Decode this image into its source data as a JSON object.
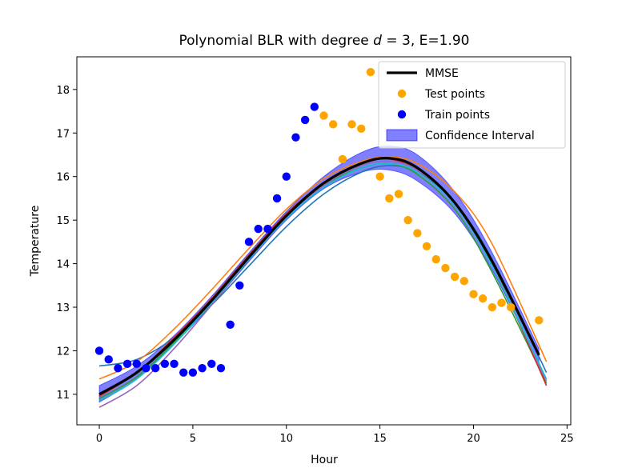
{
  "chart_data": {
    "type": "line",
    "title": "Polynomial BLR with degree d = 3, E=1.90",
    "title_parts": {
      "prefix": "Polynomial BLR with degree ",
      "var": "d",
      "suffix": " = 3, E=1.90"
    },
    "xlabel": "Hour",
    "ylabel": "Temperature",
    "xlim": [
      -1.2,
      25.2
    ],
    "ylim": [
      10.3,
      18.75
    ],
    "xticks": [
      0,
      5,
      10,
      15,
      20,
      25
    ],
    "yticks": [
      11,
      12,
      13,
      14,
      15,
      16,
      17,
      18
    ],
    "grid": false,
    "legend_position": "top-right",
    "legend": [
      {
        "label": "MMSE",
        "kind": "line",
        "color": "#000000"
      },
      {
        "label": "Test points",
        "kind": "marker",
        "color": "#ffa500"
      },
      {
        "label": "Train points",
        "kind": "marker",
        "color": "#0000ff"
      },
      {
        "label": "Confidence Interval",
        "kind": "patch",
        "color": "#0000ff"
      }
    ],
    "mmse": {
      "color": "#000000",
      "points": [
        [
          0,
          11.0
        ],
        [
          2,
          11.5
        ],
        [
          4,
          12.25
        ],
        [
          6,
          13.15
        ],
        [
          8,
          14.15
        ],
        [
          10,
          15.1
        ],
        [
          12,
          15.85
        ],
        [
          14,
          16.3
        ],
        [
          15.5,
          16.42
        ],
        [
          17,
          16.2
        ],
        [
          19,
          15.4
        ],
        [
          21,
          14.05
        ],
        [
          23.5,
          11.9
        ]
      ]
    },
    "confidence_interval": {
      "color": "#0000ff",
      "upper": [
        [
          0,
          11.2
        ],
        [
          2,
          11.65
        ],
        [
          4,
          12.35
        ],
        [
          6,
          13.25
        ],
        [
          8,
          14.25
        ],
        [
          10,
          15.2
        ],
        [
          12,
          16.0
        ],
        [
          14,
          16.55
        ],
        [
          15.5,
          16.7
        ],
        [
          17,
          16.5
        ],
        [
          19,
          15.65
        ],
        [
          21,
          14.25
        ],
        [
          23.5,
          12.05
        ]
      ],
      "lower": [
        [
          0,
          10.82
        ],
        [
          2,
          11.35
        ],
        [
          4,
          12.15
        ],
        [
          6,
          13.05
        ],
        [
          8,
          14.05
        ],
        [
          10,
          15.0
        ],
        [
          12,
          15.72
        ],
        [
          14,
          16.1
        ],
        [
          15.5,
          16.15
        ],
        [
          17,
          15.9
        ],
        [
          19,
          15.15
        ],
        [
          21,
          13.85
        ],
        [
          23.5,
          11.7
        ]
      ]
    },
    "sample_curves": [
      {
        "color": "#1f77b4",
        "points": [
          [
            0,
            11.65
          ],
          [
            2,
            11.8
          ],
          [
            4,
            12.3
          ],
          [
            6,
            13.05
          ],
          [
            8,
            13.95
          ],
          [
            10,
            14.85
          ],
          [
            12,
            15.6
          ],
          [
            14,
            16.1
          ],
          [
            15.5,
            16.25
          ],
          [
            17,
            16.1
          ],
          [
            19,
            15.4
          ],
          [
            21,
            14.1
          ],
          [
            23.9,
            11.5
          ]
        ]
      },
      {
        "color": "#ff7f0e",
        "points": [
          [
            0,
            11.35
          ],
          [
            2,
            11.75
          ],
          [
            4,
            12.5
          ],
          [
            6,
            13.4
          ],
          [
            8,
            14.35
          ],
          [
            10,
            15.25
          ],
          [
            12,
            15.95
          ],
          [
            14,
            16.35
          ],
          [
            15.5,
            16.45
          ],
          [
            17,
            16.3
          ],
          [
            19,
            15.65
          ],
          [
            21,
            14.45
          ],
          [
            23.9,
            11.75
          ]
        ]
      },
      {
        "color": "#2ca02c",
        "points": [
          [
            0,
            10.9
          ],
          [
            2,
            11.4
          ],
          [
            4,
            12.2
          ],
          [
            6,
            13.15
          ],
          [
            8,
            14.15
          ],
          [
            10,
            15.1
          ],
          [
            12,
            15.8
          ],
          [
            14,
            16.2
          ],
          [
            15.5,
            16.3
          ],
          [
            17,
            16.05
          ],
          [
            19,
            15.25
          ],
          [
            21,
            13.8
          ],
          [
            23.9,
            11.25
          ]
        ]
      },
      {
        "color": "#d62728",
        "points": [
          [
            0,
            10.95
          ],
          [
            2,
            11.5
          ],
          [
            4,
            12.3
          ],
          [
            6,
            13.2
          ],
          [
            8,
            14.2
          ],
          [
            10,
            15.15
          ],
          [
            12,
            15.85
          ],
          [
            14,
            16.3
          ],
          [
            15.5,
            16.4
          ],
          [
            17,
            16.15
          ],
          [
            19,
            15.4
          ],
          [
            21,
            14.0
          ],
          [
            23.9,
            11.2
          ]
        ]
      },
      {
        "color": "#9467bd",
        "points": [
          [
            0,
            10.7
          ],
          [
            2,
            11.2
          ],
          [
            4,
            12.05
          ],
          [
            6,
            13.05
          ],
          [
            8,
            14.1
          ],
          [
            10,
            15.05
          ],
          [
            12,
            15.8
          ],
          [
            14,
            16.25
          ],
          [
            15.5,
            16.35
          ],
          [
            17,
            16.15
          ],
          [
            19,
            15.4
          ],
          [
            21,
            13.95
          ],
          [
            23.9,
            11.3
          ]
        ]
      },
      {
        "color": "#17becf",
        "points": [
          [
            0,
            10.85
          ],
          [
            2,
            11.35
          ],
          [
            4,
            12.15
          ],
          [
            6,
            13.1
          ],
          [
            8,
            14.1
          ],
          [
            10,
            15.05
          ],
          [
            12,
            15.75
          ],
          [
            14,
            16.2
          ],
          [
            15.5,
            16.3
          ],
          [
            17,
            16.1
          ],
          [
            19,
            15.35
          ],
          [
            21,
            13.95
          ],
          [
            23.9,
            11.35
          ]
        ]
      }
    ],
    "train_points": {
      "color": "#0000ff",
      "x": [
        0,
        0.5,
        1,
        1.5,
        2,
        2.5,
        3,
        3.5,
        4,
        4.5,
        5,
        5.5,
        6,
        6.5,
        7,
        7.5,
        8,
        8.5,
        9,
        9.5,
        10,
        10.5,
        11,
        11.5
      ],
      "y": [
        12.0,
        11.8,
        11.6,
        11.7,
        11.7,
        11.6,
        11.6,
        11.7,
        11.7,
        11.5,
        11.5,
        11.6,
        11.7,
        11.6,
        12.6,
        13.5,
        14.5,
        14.8,
        14.8,
        15.5,
        16.0,
        16.9,
        17.3,
        17.6
      ]
    },
    "test_points": {
      "color": "#ffa500",
      "x": [
        12,
        12.5,
        13,
        13.5,
        14,
        14.5,
        15,
        15.5,
        16,
        16.5,
        17,
        17.5,
        18,
        18.5,
        19,
        19.5,
        20,
        20.5,
        21,
        21.5,
        22,
        23.5
      ],
      "y": [
        17.4,
        17.2,
        16.4,
        17.2,
        17.1,
        18.4,
        16.0,
        15.5,
        15.6,
        15.0,
        14.7,
        14.4,
        14.1,
        13.9,
        13.7,
        13.6,
        13.3,
        13.2,
        13.0,
        13.1,
        13.0,
        12.7
      ]
    }
  }
}
